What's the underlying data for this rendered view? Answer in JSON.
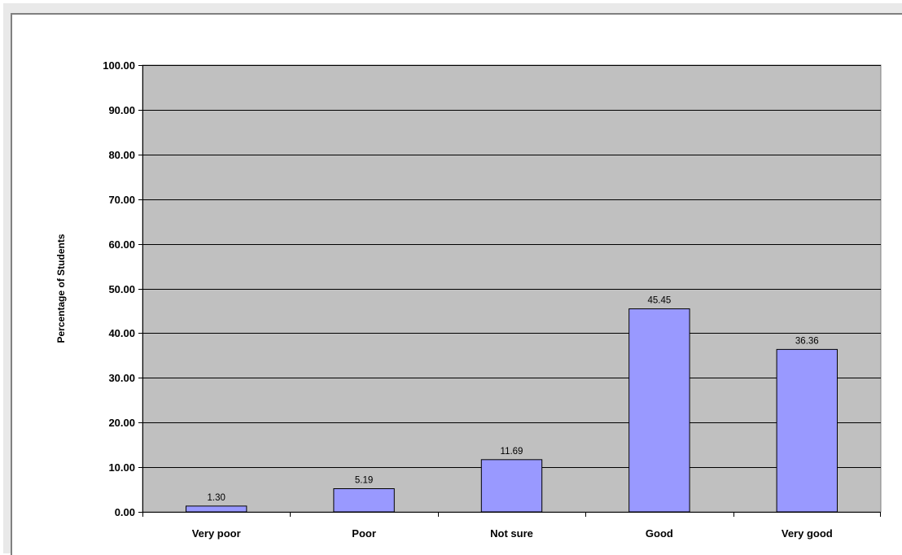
{
  "chart_data": {
    "type": "bar",
    "title": "",
    "xlabel": "",
    "ylabel": "Percentage of Students",
    "categories": [
      "Very poor",
      "Poor",
      "Not sure",
      "Good",
      "Very good"
    ],
    "values": [
      1.3,
      5.19,
      11.69,
      45.45,
      36.36
    ],
    "value_labels": [
      "1.30",
      "5.19",
      "11.69",
      "45.45",
      "36.36"
    ],
    "ylim": [
      0,
      100
    ],
    "yticks": [
      "0.00",
      "10.00",
      "20.00",
      "30.00",
      "40.00",
      "50.00",
      "60.00",
      "70.00",
      "80.00",
      "90.00",
      "100.00"
    ],
    "grid": true,
    "legend": "none",
    "colors": {
      "bar_fill": "#9999ff",
      "bar_stroke": "#000000",
      "plot_background": "#c0c0c0",
      "gridline": "#000000"
    }
  }
}
